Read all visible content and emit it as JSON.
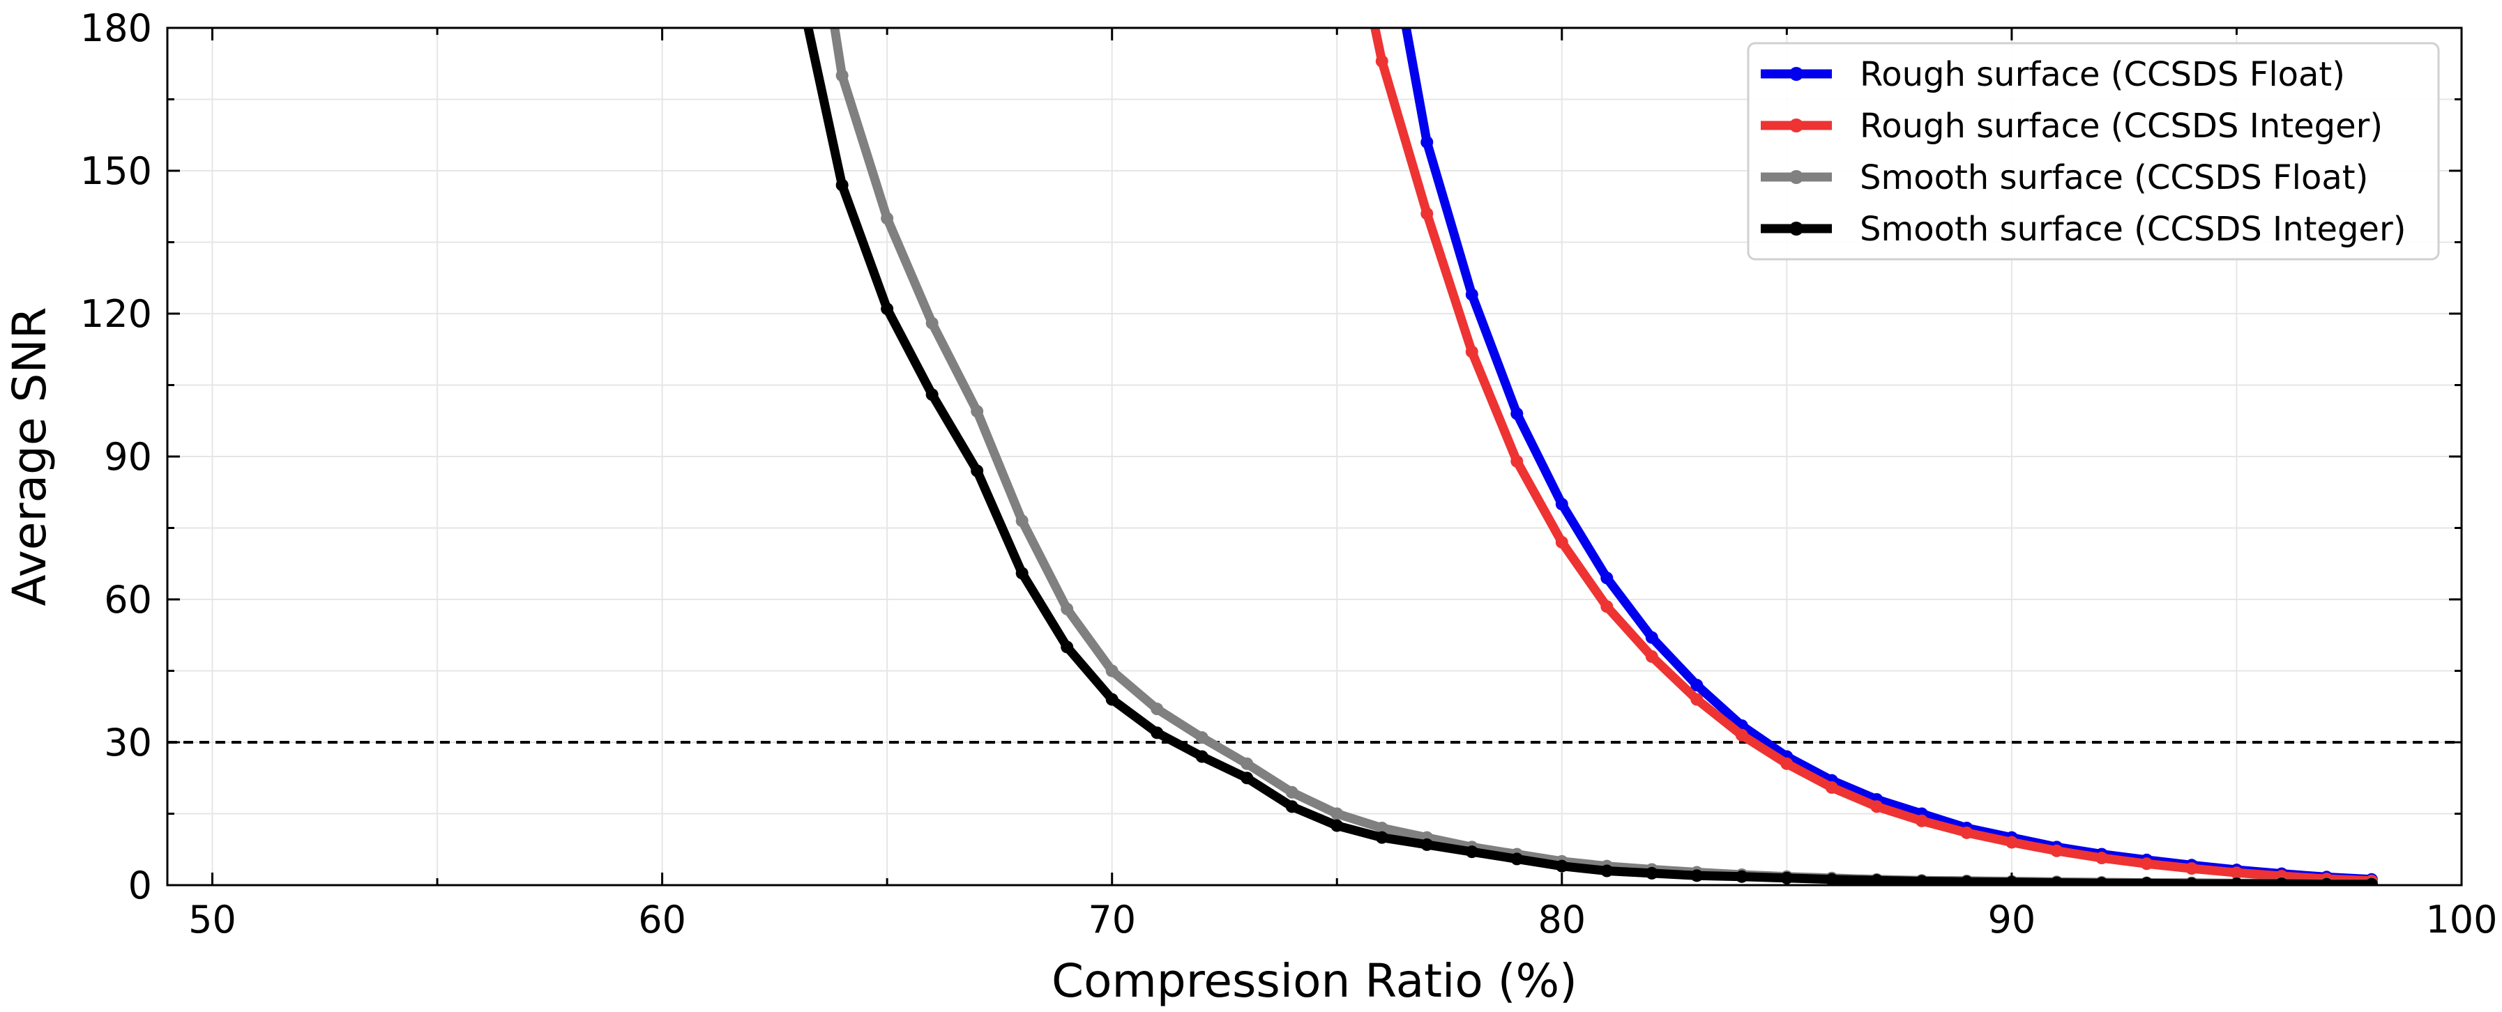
{
  "chart_data": {
    "type": "line",
    "title": "",
    "xlabel": "Compression Ratio (%)",
    "ylabel": "Average SNR",
    "xlim": [
      49,
      100
    ],
    "ylim": [
      0,
      180
    ],
    "xticks": [
      50,
      60,
      70,
      80,
      90,
      100
    ],
    "yticks": [
      0,
      30,
      60,
      90,
      120,
      150,
      180
    ],
    "grid": true,
    "legend_position": "top-right",
    "reference_line": {
      "y": 30,
      "style": "dashed",
      "color": "#000000"
    },
    "series": [
      {
        "name": "Rough surface (CCSDS Float)",
        "color": "#0000ee",
        "x": [
          76.5,
          77,
          78,
          79,
          80,
          81,
          82,
          83,
          84,
          85,
          86,
          87,
          88,
          89,
          90,
          91,
          92,
          93,
          94,
          95,
          96,
          97,
          98
        ],
        "y": [
          182,
          156,
          124,
          99,
          80,
          64.5,
          52,
          42,
          33.5,
          27,
          22,
          18,
          15,
          12,
          10,
          8,
          6.5,
          5.3,
          4.2,
          3.2,
          2.4,
          1.7,
          1.2
        ]
      },
      {
        "name": "Rough surface (CCSDS Integer)",
        "color": "#ee3333",
        "x": [
          75.8,
          76,
          77,
          78,
          79,
          80,
          81,
          82,
          83,
          84,
          85,
          86,
          87,
          88,
          89,
          90,
          91,
          92,
          93,
          94,
          95,
          96,
          97,
          98
        ],
        "y": [
          182,
          173,
          141,
          112,
          89,
          72,
          58.5,
          48,
          39,
          31.5,
          25.5,
          20.5,
          16.5,
          13.5,
          11,
          9,
          7.2,
          5.7,
          4.5,
          3.5,
          2.6,
          1.9,
          1.3,
          0.9
        ]
      },
      {
        "name": "Smooth surface (CCSDS Float)",
        "color": "#808080",
        "x": [
          63.8,
          64,
          65,
          66,
          67,
          68,
          69,
          70,
          71,
          72,
          73,
          74,
          75,
          76,
          77,
          78,
          79,
          80,
          81,
          82,
          83,
          84,
          85,
          86,
          87,
          88,
          89,
          90,
          91,
          92,
          93,
          94,
          95,
          96,
          97,
          98
        ],
        "y": [
          182,
          170,
          140,
          118,
          99.5,
          76.5,
          58,
          45,
          37,
          31,
          25.5,
          19.5,
          15,
          12,
          10,
          8,
          6.5,
          5,
          4,
          3.3,
          2.7,
          2.2,
          1.8,
          1.5,
          1.2,
          1,
          0.9,
          0.8,
          0.7,
          0.6,
          0.5,
          0.5,
          0.4,
          0.4,
          0.3,
          0.3
        ]
      },
      {
        "name": "Smooth surface (CCSDS Integer)",
        "color": "#000000",
        "x": [
          63.2,
          64,
          65,
          66,
          67,
          68,
          69,
          70,
          71,
          72,
          73,
          74,
          75,
          76,
          77,
          78,
          79,
          80,
          81,
          82,
          83,
          84,
          85,
          86,
          87,
          88,
          89,
          90,
          91,
          92,
          93,
          94,
          95,
          96,
          97,
          98
        ],
        "y": [
          182,
          147,
          121,
          103,
          87,
          65.5,
          50,
          39,
          32,
          27,
          22.5,
          16.5,
          12.5,
          10,
          8.5,
          7,
          5.5,
          4,
          3,
          2.5,
          2,
          1.8,
          1.5,
          1.2,
          1,
          0.8,
          0.7,
          0.6,
          0.5,
          0.4,
          0.4,
          0.3,
          0.3,
          0.3,
          0.2,
          0.2
        ]
      }
    ]
  }
}
